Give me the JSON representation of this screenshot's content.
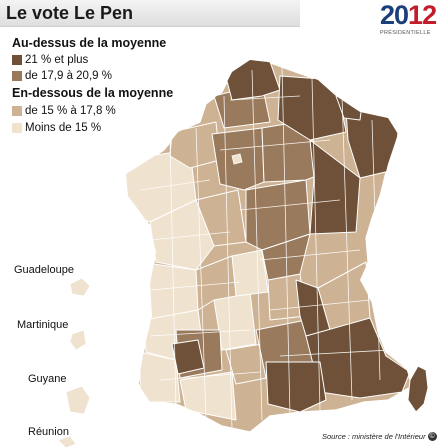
{
  "title": "Le vote Le Pen",
  "logo": {
    "year_part1": "20",
    "year_part2": "12",
    "subtitle": "PRÉSIDENTIELLE"
  },
  "legend": {
    "above_heading": "Au-dessus de la moyenne",
    "below_heading": "En-dessous de la moyenne",
    "items": [
      {
        "label": "21 % et plus",
        "color": "#6e5138"
      },
      {
        "label": "de 17,9 à 20,9 %",
        "color": "#9a7a5c"
      },
      {
        "label": "de 15 % à 17,8 %",
        "color": "#cdb293"
      },
      {
        "label": "Moins de 15 %",
        "color": "#efe2cf"
      }
    ]
  },
  "overseas": [
    "Guadeloupe",
    "Martinique",
    "Guyane",
    "Réunion"
  ],
  "source": "Source : ministère de l'Intérieur",
  "copyright_symbol": "©"
}
